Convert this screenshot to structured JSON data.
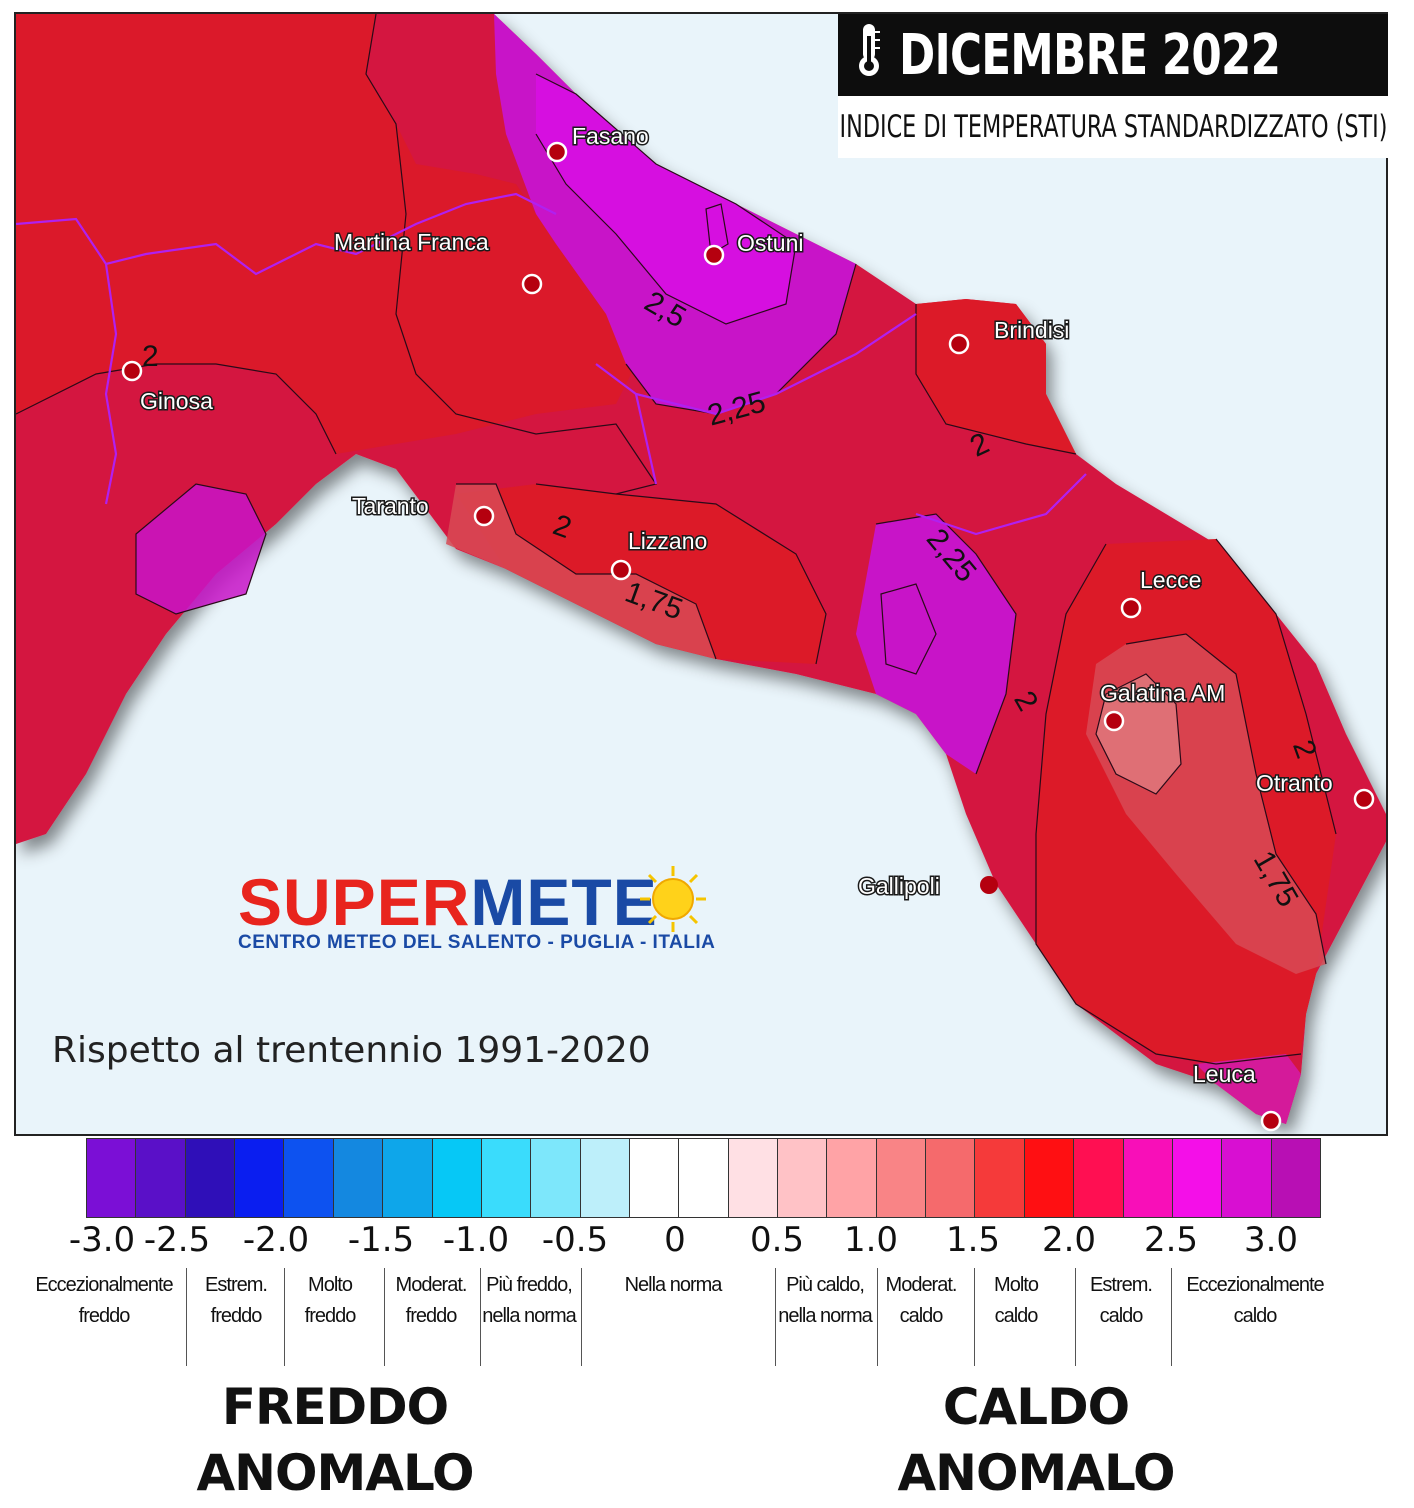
{
  "header": {
    "title": "DICEMBRE 2022",
    "subtitle": "INDICE DI TEMPERATURA STANDARDIZZATO (STI)",
    "thermometer_icon": "thermometer-icon"
  },
  "cities": [
    {
      "name": "Fasano"
    },
    {
      "name": "Martina Franca"
    },
    {
      "name": "Ostuni"
    },
    {
      "name": "Brindisi"
    },
    {
      "name": "Ginosa"
    },
    {
      "name": "Taranto"
    },
    {
      "name": "Lizzano"
    },
    {
      "name": "Lecce"
    },
    {
      "name": "Galatina AM"
    },
    {
      "name": "Otranto"
    },
    {
      "name": "Gallipoli"
    },
    {
      "name": "Leuca"
    }
  ],
  "contour_labels": [
    "2,5",
    "2,25",
    "2",
    "2",
    "2",
    "1,75",
    "2,25",
    "2",
    "2",
    "1,75"
  ],
  "logo": {
    "name_part1": "SUPER",
    "name_part2": "METE",
    "tagline": "CENTRO METEO DEL SALENTO - PUGLIA - ITALIA"
  },
  "note": "Rispetto al trentennio 1991-2020",
  "legend": {
    "colors": [
      "#7b0fd6",
      "#5a10c8",
      "#2f0fb8",
      "#0a1ef0",
      "#0d52f0",
      "#1488e0",
      "#0ea6ea",
      "#06c8f6",
      "#3adcfc",
      "#7de7fb",
      "#bdeffa",
      "#ffffff",
      "#ffffff",
      "#ffe0e4",
      "#ffc2c6",
      "#ffa3a6",
      "#f98486",
      "#f56a6c",
      "#f53a3a",
      "#ff0f12",
      "#ff0f52",
      "#f80fb8",
      "#f40fe8",
      "#d80fd2",
      "#b80fb4"
    ],
    "ticks": [
      "-3.0",
      "-2.5",
      "-2.0",
      "-1.5",
      "-1.0",
      "-0.5",
      "0",
      "0.5",
      "1.0",
      "1.5",
      "2.0",
      "2.5",
      "3.0"
    ],
    "categories": [
      {
        "line1": "Eccezionalmente",
        "line2": "freddo"
      },
      {
        "line1": "Estrem.",
        "line2": "freddo"
      },
      {
        "line1": "Molto",
        "line2": "freddo"
      },
      {
        "line1": "Moderat.",
        "line2": "freddo"
      },
      {
        "line1": "Più freddo,",
        "line2": "nella norma"
      },
      {
        "line1": "Nella norma",
        "line2": ""
      },
      {
        "line1": "Più caldo,",
        "line2": "nella norma"
      },
      {
        "line1": "Moderat.",
        "line2": "caldo"
      },
      {
        "line1": "Molto",
        "line2": "caldo"
      },
      {
        "line1": "Estrem.",
        "line2": "caldo"
      },
      {
        "line1": "Eccezionalmente",
        "line2": "caldo"
      }
    ],
    "cold_label_1": "FREDDO",
    "cold_label_2": "ANOMALO",
    "warm_label_1": "CALDO",
    "warm_label_2": "ANOMALO"
  }
}
